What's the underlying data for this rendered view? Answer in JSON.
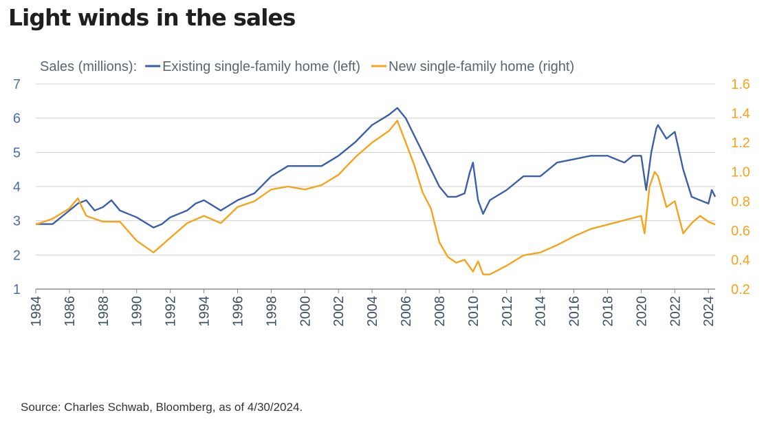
{
  "title": "Light winds in the sales",
  "source": "Source: Charles Schwab, Bloomberg, as of 4/30/2024.",
  "colors": {
    "existing": "#3b5ea8",
    "new": "#f5a31a",
    "left_axis": "#4a6fa5",
    "right_axis": "#f5a31a",
    "grid": "#d0d0d0"
  },
  "chart_data": {
    "type": "line",
    "legend_prefix": "Sales (millions):",
    "legend_placement": "top",
    "grid": true,
    "x_ticks": [
      "1984",
      "1986",
      "1988",
      "1990",
      "1992",
      "1994",
      "1996",
      "1998",
      "2000",
      "2002",
      "2004",
      "2006",
      "2008",
      "2010",
      "2012",
      "2014",
      "2016",
      "2018",
      "2020",
      "2022",
      "2024"
    ],
    "xlim": [
      1984,
      2024.4
    ],
    "y_left": {
      "ticks": [
        "1",
        "2",
        "3",
        "4",
        "5",
        "6",
        "7"
      ],
      "ylim": [
        1,
        7
      ]
    },
    "y_right": {
      "ticks": [
        "0.2",
        "0.4",
        "0.6",
        "0.8",
        "1.0",
        "1.2",
        "1.4",
        "1.6"
      ],
      "ylim": [
        0.2,
        1.6
      ]
    },
    "series": [
      {
        "name": "Existing single-family home (left)",
        "axis": "left",
        "x": [
          1984,
          1985,
          1986,
          1986.5,
          1987,
          1987.5,
          1988,
          1988.5,
          1989,
          1990,
          1991,
          1991.5,
          1992,
          1993,
          1993.5,
          1994,
          1995,
          1996,
          1997,
          1998,
          1999,
          2000,
          2001,
          2002,
          2003,
          2004,
          2005,
          2005.5,
          2006,
          2006.5,
          2007,
          2007.5,
          2008,
          2008.5,
          2009,
          2009.5,
          2009.8,
          2010,
          2010.3,
          2010.6,
          2011,
          2012,
          2013,
          2014,
          2015,
          2016,
          2017,
          2018,
          2019,
          2019.5,
          2020,
          2020.3,
          2020.6,
          2020.9,
          2021,
          2021.5,
          2022,
          2022.5,
          2023,
          2023.5,
          2024,
          2024.2,
          2024.4
        ],
        "y": [
          2.9,
          2.9,
          3.3,
          3.5,
          3.6,
          3.3,
          3.4,
          3.6,
          3.3,
          3.1,
          2.8,
          2.9,
          3.1,
          3.3,
          3.5,
          3.6,
          3.3,
          3.6,
          3.8,
          4.3,
          4.6,
          4.6,
          4.6,
          4.9,
          5.3,
          5.8,
          6.1,
          6.3,
          6.0,
          5.5,
          5.0,
          4.5,
          4.0,
          3.7,
          3.7,
          3.8,
          4.4,
          4.7,
          3.6,
          3.2,
          3.6,
          3.9,
          4.3,
          4.3,
          4.7,
          4.8,
          4.9,
          4.9,
          4.7,
          4.9,
          4.9,
          3.9,
          5.0,
          5.7,
          5.8,
          5.4,
          5.6,
          4.5,
          3.7,
          3.6,
          3.5,
          3.9,
          3.7
        ]
      },
      {
        "name": "New single-family home (right)",
        "axis": "right",
        "x": [
          1984,
          1985,
          1986,
          1986.5,
          1987,
          1988,
          1989,
          1990,
          1991,
          1992,
          1993,
          1994,
          1995,
          1996,
          1997,
          1998,
          1999,
          2000,
          2001,
          2002,
          2003,
          2004,
          2005,
          2005.5,
          2006,
          2006.5,
          2007,
          2007.5,
          2008,
          2008.5,
          2009,
          2009.5,
          2010,
          2010.3,
          2010.6,
          2011,
          2012,
          2013,
          2014,
          2015,
          2016,
          2017,
          2018,
          2019,
          2020,
          2020.2,
          2020.5,
          2020.8,
          2021,
          2021.5,
          2022,
          2022.5,
          2023,
          2023.5,
          2024,
          2024.4
        ],
        "y": [
          0.64,
          0.68,
          0.75,
          0.82,
          0.7,
          0.66,
          0.66,
          0.53,
          0.45,
          0.55,
          0.65,
          0.7,
          0.65,
          0.76,
          0.8,
          0.88,
          0.9,
          0.88,
          0.91,
          0.98,
          1.1,
          1.2,
          1.28,
          1.35,
          1.2,
          1.05,
          0.86,
          0.75,
          0.52,
          0.42,
          0.38,
          0.4,
          0.32,
          0.39,
          0.3,
          0.3,
          0.36,
          0.43,
          0.45,
          0.5,
          0.56,
          0.61,
          0.64,
          0.67,
          0.7,
          0.58,
          0.9,
          1.0,
          0.97,
          0.76,
          0.8,
          0.58,
          0.65,
          0.7,
          0.66,
          0.64
        ]
      }
    ]
  }
}
